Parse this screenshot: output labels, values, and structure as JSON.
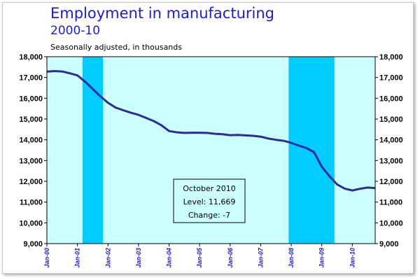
{
  "chart_data": {
    "type": "line",
    "title": "Employment in manufacturing",
    "subtitle": "2000-10",
    "ylabel": "Seasonally adjusted, in thousands",
    "ylim": [
      9000,
      18000
    ],
    "yticks": [
      "9,000",
      "10,000",
      "11,000",
      "12,000",
      "13,000",
      "14,000",
      "15,000",
      "16,000",
      "17,000",
      "18,000"
    ],
    "xlim": [
      "2000-01",
      "2010-10"
    ],
    "xticks": [
      "Jan-00",
      "Jan-01",
      "Jan-02",
      "Jan-03",
      "Jan-04",
      "Jan-05",
      "Jan-06",
      "Jan-07",
      "Jan-08",
      "Jan-09",
      "Jan-10"
    ],
    "grid": false,
    "dual_y_axis": true,
    "recessions": [
      {
        "start": "2001-03",
        "end": "2001-11"
      },
      {
        "start": "2007-12",
        "end": "2009-06"
      }
    ],
    "series": [
      {
        "color": "#2b2b99",
        "points": [
          [
            "2000-01",
            17280
          ],
          [
            "2000-04",
            17310
          ],
          [
            "2000-07",
            17290
          ],
          [
            "2000-10",
            17200
          ],
          [
            "2001-01",
            17100
          ],
          [
            "2001-04",
            16800
          ],
          [
            "2001-07",
            16450
          ],
          [
            "2001-10",
            16100
          ],
          [
            "2002-01",
            15780
          ],
          [
            "2002-04",
            15550
          ],
          [
            "2002-07",
            15420
          ],
          [
            "2002-10",
            15300
          ],
          [
            "2003-01",
            15200
          ],
          [
            "2003-04",
            15050
          ],
          [
            "2003-07",
            14900
          ],
          [
            "2003-10",
            14700
          ],
          [
            "2004-01",
            14420
          ],
          [
            "2004-04",
            14360
          ],
          [
            "2004-07",
            14330
          ],
          [
            "2004-10",
            14340
          ],
          [
            "2005-01",
            14340
          ],
          [
            "2005-04",
            14330
          ],
          [
            "2005-07",
            14290
          ],
          [
            "2005-10",
            14270
          ],
          [
            "2006-01",
            14220
          ],
          [
            "2006-04",
            14230
          ],
          [
            "2006-07",
            14210
          ],
          [
            "2006-10",
            14190
          ],
          [
            "2007-01",
            14150
          ],
          [
            "2007-04",
            14060
          ],
          [
            "2007-07",
            14000
          ],
          [
            "2007-10",
            13950
          ],
          [
            "2008-01",
            13850
          ],
          [
            "2008-04",
            13720
          ],
          [
            "2008-07",
            13600
          ],
          [
            "2008-10",
            13400
          ],
          [
            "2009-01",
            12700
          ],
          [
            "2009-04",
            12250
          ],
          [
            "2009-07",
            11850
          ],
          [
            "2009-10",
            11650
          ],
          [
            "2010-01",
            11560
          ],
          [
            "2010-04",
            11640
          ],
          [
            "2010-07",
            11700
          ],
          [
            "2010-10",
            11669
          ]
        ]
      }
    ],
    "annotation": {
      "lines": [
        "October 2010",
        "Level: 11,669",
        "Change: -7"
      ]
    }
  },
  "colors": {
    "plot_bg": "#ccffff",
    "recession": "#00ccff",
    "line": "#2b2b99",
    "text_blue": "#1a1ae6"
  }
}
